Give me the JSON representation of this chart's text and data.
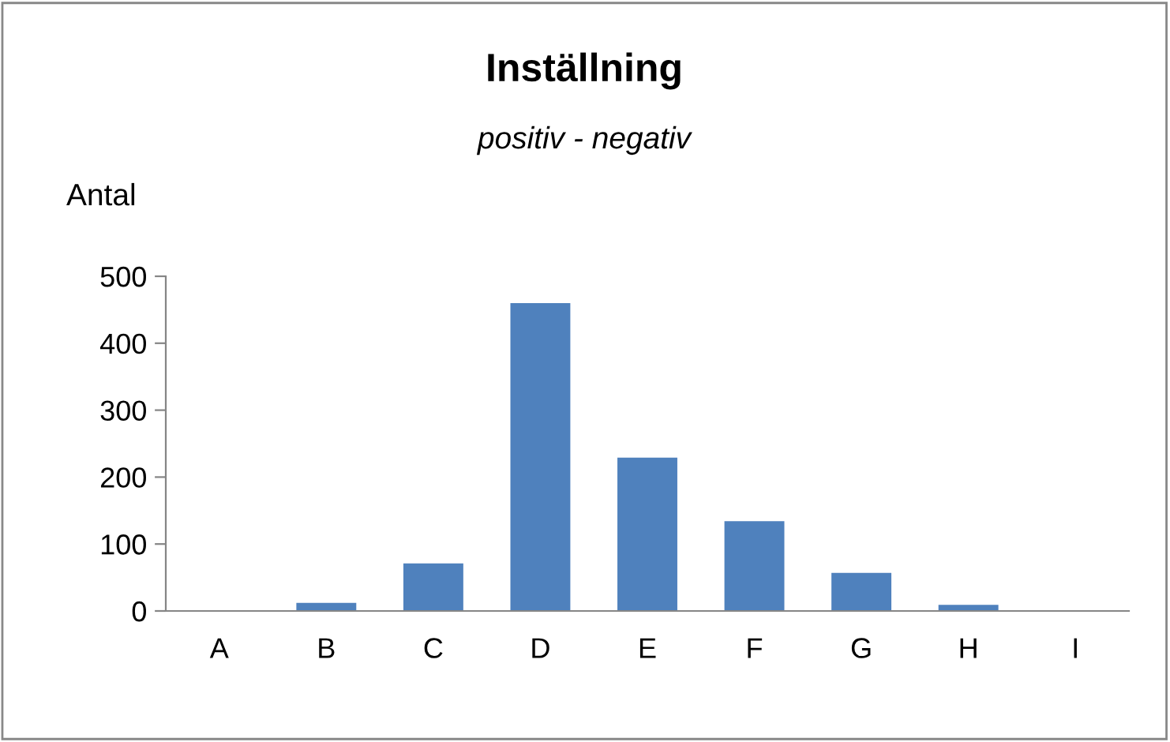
{
  "chart_data": {
    "type": "bar",
    "title": "Inställning",
    "subtitle": "positiv - negativ",
    "ylabel": "Antal",
    "categories": [
      "A",
      "B",
      "C",
      "D",
      "E",
      "F",
      "G",
      "H",
      "I"
    ],
    "values": [
      0,
      12,
      71,
      460,
      229,
      134,
      57,
      9,
      0
    ],
    "color": "#4f81bd",
    "ylim": [
      0,
      500
    ],
    "yticks": [
      0,
      100,
      200,
      300,
      400,
      500
    ],
    "grid": false,
    "legend": false
  }
}
